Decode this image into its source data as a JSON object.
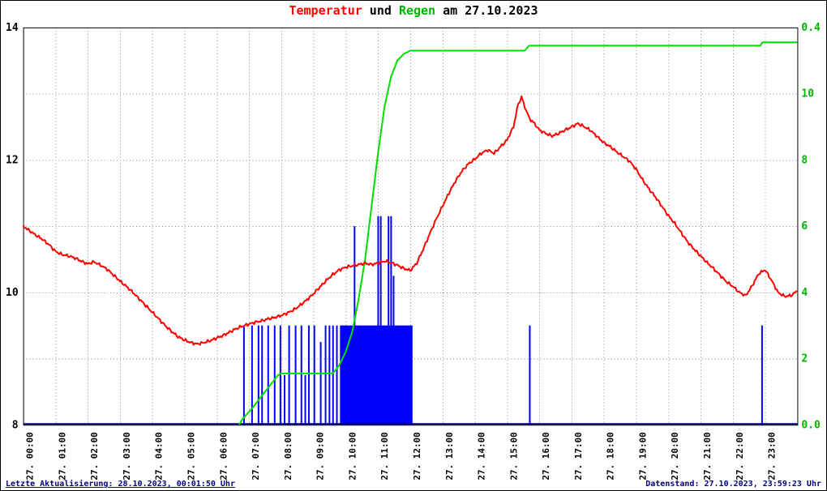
{
  "title": {
    "temperature_label": "Temperatur",
    "conjunction": " und ",
    "rain_label": "Regen",
    "date_suffix": " am 27.10.2023"
  },
  "footer": {
    "last_update": "Letzte Aktualisierung: 28.10.2023, 00:01:50 Uhr",
    "data_state": "Datenstand: 27.10.2023, 23:59:23 Uhr"
  },
  "colors": {
    "temperature_line": "#ff0000",
    "rain_bars": "#0000ff",
    "rain_zero_baseline": "#000080",
    "rain_total_line": "#00dd00",
    "right_axis_text": "#00b400",
    "grid": "#888888",
    "axis_text": "#000000",
    "footer_text": "#000080"
  },
  "chart_data": {
    "type": "line+bar",
    "title": "Temperatur und Regen am 27.10.2023",
    "grid": "dotted, hourly vertical lines and horizontal lines each 1 °C",
    "x_axis": {
      "range_hours": [
        0,
        24
      ],
      "labels": [
        "27. 00:00",
        "27. 01:00",
        "27. 02:00",
        "27. 03:00",
        "27. 04:00",
        "27. 05:00",
        "27. 06:00",
        "27. 07:00",
        "27. 08:00",
        "27. 09:00",
        "27. 10:00",
        "27. 11:00",
        "27. 12:00",
        "27. 13:00",
        "27. 14:00",
        "27. 15:00",
        "27. 16:00",
        "27. 17:00",
        "27. 18:00",
        "27. 19:00",
        "27. 20:00",
        "27. 21:00",
        "27. 22:00",
        "27. 23:00"
      ]
    },
    "left_axis": {
      "series": "Temperatur",
      "range": [
        8,
        14
      ],
      "label_values": [
        8,
        10,
        12,
        14
      ],
      "color": "#000000"
    },
    "right_axis": {
      "series": "Regen",
      "range": [
        0,
        12
      ],
      "label_values": [
        0,
        2,
        4,
        6,
        8,
        10
      ],
      "labels": [
        "0.0",
        "2",
        "4",
        "6",
        "8",
        "10"
      ],
      "top_label": "0.4",
      "color": "#00b400"
    },
    "temperature_series": {
      "name": "Temperatur",
      "color": "#ff0000",
      "points": [
        [
          0,
          11.0
        ],
        [
          0.2,
          10.93
        ],
        [
          0.4,
          10.86
        ],
        [
          0.6,
          10.8
        ],
        [
          0.8,
          10.72
        ],
        [
          1,
          10.62
        ],
        [
          1.2,
          10.57
        ],
        [
          1.4,
          10.55
        ],
        [
          1.6,
          10.52
        ],
        [
          1.8,
          10.47
        ],
        [
          2,
          10.43
        ],
        [
          2.2,
          10.46
        ],
        [
          2.4,
          10.41
        ],
        [
          2.6,
          10.35
        ],
        [
          2.8,
          10.26
        ],
        [
          3,
          10.17
        ],
        [
          3.2,
          10.09
        ],
        [
          3.4,
          10.0
        ],
        [
          3.6,
          9.9
        ],
        [
          3.8,
          9.8
        ],
        [
          4,
          9.7
        ],
        [
          4.2,
          9.6
        ],
        [
          4.4,
          9.5
        ],
        [
          4.6,
          9.41
        ],
        [
          4.8,
          9.33
        ],
        [
          5,
          9.28
        ],
        [
          5.2,
          9.24
        ],
        [
          5.4,
          9.22
        ],
        [
          5.6,
          9.24
        ],
        [
          5.8,
          9.27
        ],
        [
          6,
          9.31
        ],
        [
          6.2,
          9.35
        ],
        [
          6.4,
          9.4
        ],
        [
          6.6,
          9.45
        ],
        [
          6.8,
          9.49
        ],
        [
          7,
          9.52
        ],
        [
          7.2,
          9.55
        ],
        [
          7.4,
          9.57
        ],
        [
          7.6,
          9.6
        ],
        [
          7.8,
          9.62
        ],
        [
          8,
          9.65
        ],
        [
          8.2,
          9.69
        ],
        [
          8.4,
          9.74
        ],
        [
          8.6,
          9.81
        ],
        [
          8.8,
          9.89
        ],
        [
          9,
          9.98
        ],
        [
          9.2,
          10.08
        ],
        [
          9.4,
          10.18
        ],
        [
          9.6,
          10.27
        ],
        [
          9.8,
          10.34
        ],
        [
          10,
          10.38
        ],
        [
          10.2,
          10.4
        ],
        [
          10.4,
          10.42
        ],
        [
          10.6,
          10.44
        ],
        [
          10.8,
          10.42
        ],
        [
          11,
          10.44
        ],
        [
          11.2,
          10.47
        ],
        [
          11.4,
          10.45
        ],
        [
          11.6,
          10.41
        ],
        [
          11.8,
          10.36
        ],
        [
          12,
          10.33
        ],
        [
          12.2,
          10.44
        ],
        [
          12.4,
          10.65
        ],
        [
          12.6,
          10.88
        ],
        [
          12.8,
          11.1
        ],
        [
          13,
          11.3
        ],
        [
          13.2,
          11.5
        ],
        [
          13.4,
          11.68
        ],
        [
          13.6,
          11.83
        ],
        [
          13.8,
          11.94
        ],
        [
          14,
          12.01
        ],
        [
          14.2,
          12.1
        ],
        [
          14.4,
          12.15
        ],
        [
          14.6,
          12.1
        ],
        [
          14.8,
          12.2
        ],
        [
          15,
          12.3
        ],
        [
          15.2,
          12.5
        ],
        [
          15.35,
          12.85
        ],
        [
          15.45,
          12.95
        ],
        [
          15.55,
          12.8
        ],
        [
          15.7,
          12.62
        ],
        [
          15.85,
          12.55
        ],
        [
          16,
          12.45
        ],
        [
          16.2,
          12.4
        ],
        [
          16.4,
          12.36
        ],
        [
          16.6,
          12.4
        ],
        [
          16.8,
          12.45
        ],
        [
          17,
          12.5
        ],
        [
          17.2,
          12.55
        ],
        [
          17.4,
          12.5
        ],
        [
          17.6,
          12.44
        ],
        [
          17.8,
          12.35
        ],
        [
          18,
          12.26
        ],
        [
          18.2,
          12.2
        ],
        [
          18.4,
          12.12
        ],
        [
          18.6,
          12.05
        ],
        [
          18.8,
          11.98
        ],
        [
          19,
          11.86
        ],
        [
          19.2,
          11.7
        ],
        [
          19.4,
          11.56
        ],
        [
          19.6,
          11.44
        ],
        [
          19.8,
          11.3
        ],
        [
          20,
          11.16
        ],
        [
          20.2,
          11.04
        ],
        [
          20.4,
          10.9
        ],
        [
          20.6,
          10.76
        ],
        [
          20.8,
          10.65
        ],
        [
          21,
          10.55
        ],
        [
          21.2,
          10.45
        ],
        [
          21.4,
          10.36
        ],
        [
          21.6,
          10.26
        ],
        [
          21.8,
          10.16
        ],
        [
          22,
          10.09
        ],
        [
          22.2,
          10.0
        ],
        [
          22.4,
          9.95
        ],
        [
          22.6,
          10.1
        ],
        [
          22.8,
          10.28
        ],
        [
          23,
          10.34
        ],
        [
          23.2,
          10.18
        ],
        [
          23.4,
          10.0
        ],
        [
          23.6,
          9.94
        ],
        [
          23.8,
          9.95
        ],
        [
          24,
          10.02
        ]
      ]
    },
    "rain_bars": {
      "name": "Regen",
      "color": "#0000ff",
      "baseline_color": "#000080",
      "default_width_hours": 0.05,
      "bars": [
        {
          "t": 6.82,
          "v": 3
        },
        {
          "t": 7.07,
          "v": 3
        },
        {
          "t": 7.27,
          "v": 3
        },
        {
          "t": 7.38,
          "v": 3
        },
        {
          "t": 7.57,
          "v": 3
        },
        {
          "t": 7.77,
          "v": 3
        },
        {
          "t": 7.95,
          "v": 3
        },
        {
          "t": 8.08,
          "v": 1.5
        },
        {
          "t": 8.22,
          "v": 3
        },
        {
          "t": 8.42,
          "v": 3
        },
        {
          "t": 8.6,
          "v": 3
        },
        {
          "t": 8.72,
          "v": 1.5
        },
        {
          "t": 8.83,
          "v": 3
        },
        {
          "t": 9.0,
          "v": 3
        },
        {
          "t": 9.2,
          "v": 2.5
        },
        {
          "t": 9.35,
          "v": 3
        },
        {
          "t": 9.47,
          "v": 3
        },
        {
          "t": 9.58,
          "v": 3
        },
        {
          "t": 9.7,
          "v": 3
        },
        {
          "t": 9.82,
          "v": 3,
          "w": 2.25
        },
        {
          "t": 10.25,
          "v": 6
        },
        {
          "t": 10.98,
          "v": 6.3
        },
        {
          "t": 11.06,
          "v": 6.3
        },
        {
          "t": 11.3,
          "v": 6.3
        },
        {
          "t": 11.38,
          "v": 6.3
        },
        {
          "t": 11.46,
          "v": 4.5
        },
        {
          "t": 15.68,
          "v": 3
        },
        {
          "t": 22.88,
          "v": 3
        }
      ]
    },
    "rain_total_series": {
      "name": "Regensumme",
      "color": "#00dd00",
      "axis_top_label": "0.4",
      "points": [
        [
          6.7,
          0
        ],
        [
          6.78,
          0.15
        ],
        [
          7.1,
          0.5
        ],
        [
          7.5,
          1.0
        ],
        [
          7.9,
          1.5
        ],
        [
          8.0,
          1.55
        ],
        [
          9.6,
          1.55
        ],
        [
          9.8,
          1.8
        ],
        [
          10.0,
          2.2
        ],
        [
          10.2,
          2.8
        ],
        [
          10.4,
          3.8
        ],
        [
          10.6,
          5.0
        ],
        [
          10.8,
          6.6
        ],
        [
          11.0,
          8.2
        ],
        [
          11.2,
          9.6
        ],
        [
          11.4,
          10.5
        ],
        [
          11.6,
          11.0
        ],
        [
          11.8,
          11.2
        ],
        [
          12.0,
          11.3
        ],
        [
          15.55,
          11.3
        ],
        [
          15.68,
          11.45
        ],
        [
          22.85,
          11.45
        ],
        [
          22.92,
          11.55
        ],
        [
          24.0,
          11.55
        ]
      ]
    }
  }
}
